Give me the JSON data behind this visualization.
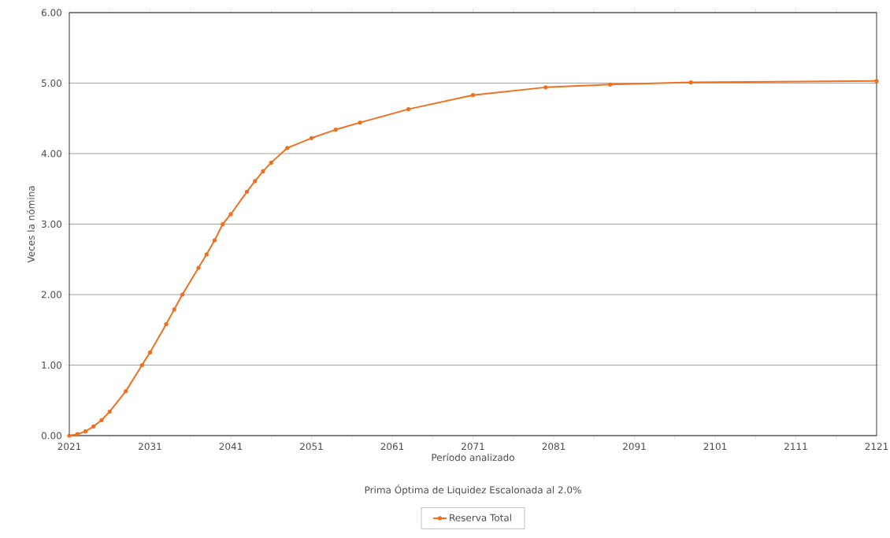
{
  "chart_data": {
    "type": "line",
    "xlabel": "Período analizado",
    "ylabel": "Veces la nómina",
    "annotations": [
      "Prima Óptima de Liquidez Escalonada al 2.0%"
    ],
    "x": [
      2021,
      2022,
      2023,
      2024,
      2025,
      2026,
      2028,
      2030,
      2031,
      2033,
      2034,
      2035,
      2037,
      2038,
      2039,
      2040,
      2041,
      2043,
      2044,
      2045,
      2046,
      2048,
      2051,
      2054,
      2057,
      2063,
      2071,
      2080,
      2088,
      2098,
      2121
    ],
    "series": [
      {
        "name": "Reserva Total",
        "color": "#f07020",
        "values": [
          0.0,
          0.02,
          0.06,
          0.13,
          0.22,
          0.34,
          0.63,
          1.0,
          1.18,
          1.58,
          1.79,
          2.0,
          2.38,
          2.57,
          2.77,
          3.0,
          3.14,
          3.46,
          3.61,
          3.75,
          3.87,
          4.08,
          4.22,
          4.34,
          4.44,
          4.63,
          4.83,
          4.94,
          4.98,
          5.01,
          5.03
        ]
      }
    ],
    "xlim": [
      2021,
      2121
    ],
    "ylim": [
      0,
      6
    ],
    "xticks": [
      2021,
      {
        "value": 2026,
        "label": null
      },
      2031,
      {
        "value": 2036,
        "label": null
      },
      2041,
      {
        "value": 2046,
        "label": null
      },
      2051,
      {
        "value": 2056,
        "label": null
      },
      2061,
      {
        "value": 2066,
        "label": null
      },
      2071,
      {
        "value": 2076,
        "label": null
      },
      2081,
      {
        "value": 2086,
        "label": null
      },
      2091,
      {
        "value": 2096,
        "label": null
      },
      2101,
      {
        "value": 2106,
        "label": null
      },
      2111,
      {
        "value": 2116,
        "label": null
      },
      2121
    ],
    "yticks": [
      {
        "value": 0,
        "label": "0.00"
      },
      {
        "value": 1,
        "label": "1.00"
      },
      {
        "value": 2,
        "label": "2.00"
      },
      {
        "value": 3,
        "label": "3.00"
      },
      {
        "value": 4,
        "label": "4.00"
      },
      {
        "value": 5,
        "label": "5.00"
      },
      {
        "value": 6,
        "label": "6.00"
      }
    ],
    "grid": "y",
    "legend": "bottom",
    "marker": "circle",
    "line_style": "solid"
  }
}
